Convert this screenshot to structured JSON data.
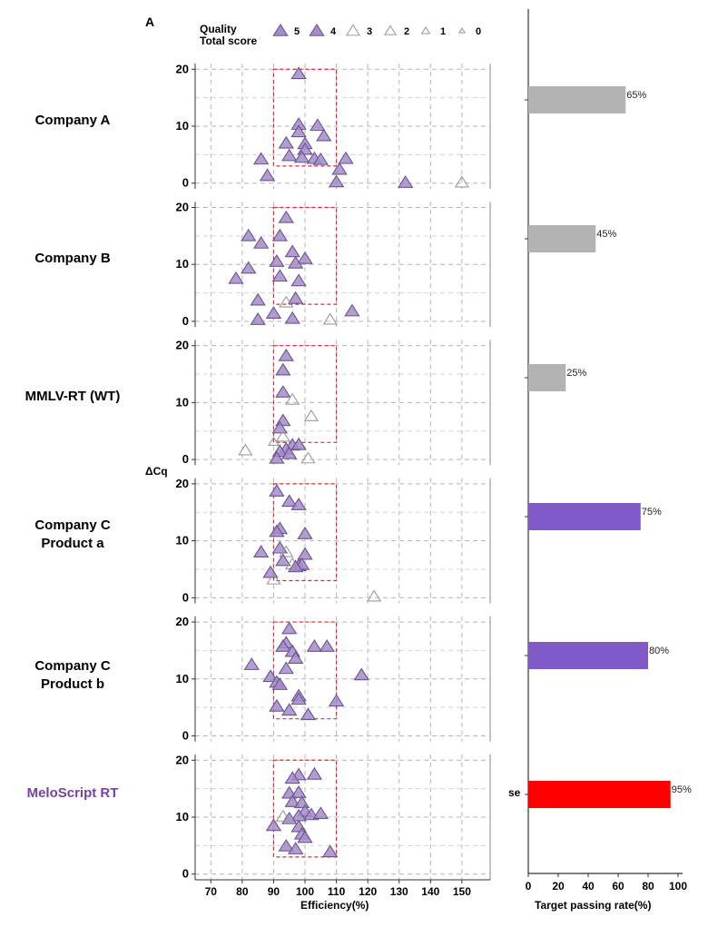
{
  "figure": {
    "panel_letter": "A",
    "y_axis_label": "ΔCq",
    "x_axis_label": "Efficiency(%)",
    "bar_axis_label": "Target passing rate(%)",
    "legend": {
      "title_line1": "Quality",
      "title_line2": "Total score",
      "levels": [
        "5",
        "4",
        "3",
        "2",
        "1",
        "0"
      ]
    },
    "cut_label_fragment": "se",
    "box_window": {
      "efficiency": [
        90,
        110
      ],
      "delta_cq": [
        3,
        20
      ]
    },
    "colors": {
      "scored_fill": "#a48cc9",
      "scored_stroke": "#6a548f",
      "low_stroke": "#9a9a9a",
      "box": "#e0282e",
      "bar_gray": "#b3b3b3",
      "bar_purple": "#7f5ac8",
      "bar_red": "#ff0000",
      "highlight_label": "#7a3fa3"
    }
  },
  "rows": [
    {
      "label_line1": "Company A",
      "label_line2": "",
      "highlight": false
    },
    {
      "label_line1": "Company B",
      "label_line2": "",
      "highlight": false
    },
    {
      "label_line1": "MMLV-RT (WT)",
      "label_line2": "",
      "highlight": false
    },
    {
      "label_line1": "Company C",
      "label_line2": "Product a",
      "highlight": false
    },
    {
      "label_line1": "Company C",
      "label_line2": "Product b",
      "highlight": false
    },
    {
      "label_line1": "MeloScript RT",
      "label_line2": "",
      "highlight": true
    }
  ],
  "chart_data": [
    {
      "type": "scatter",
      "title": "",
      "xlabel": "Efficiency(%)",
      "ylabel": "ΔCq",
      "xlim": [
        65,
        159
      ],
      "ylim": [
        -1,
        21
      ],
      "x_ticks": [
        70,
        80,
        90,
        100,
        110,
        120,
        130,
        140,
        150
      ],
      "y_ticks": [
        0,
        10,
        20
      ],
      "grid": true,
      "legend_position": "top",
      "legend_title": "Quality Total score",
      "series": [
        {
          "name": "Company A",
          "points": [
            {
              "x": 98,
              "y": 19.2,
              "s": 5
            },
            {
              "x": 98,
              "y": 10.3,
              "s": 5
            },
            {
              "x": 104,
              "y": 10.1,
              "s": 5
            },
            {
              "x": 98,
              "y": 9.0,
              "s": 5
            },
            {
              "x": 106,
              "y": 8.3,
              "s": 5
            },
            {
              "x": 94,
              "y": 7.0,
              "s": 5
            },
            {
              "x": 100,
              "y": 6.9,
              "s": 5
            },
            {
              "x": 100,
              "y": 5.9,
              "s": 5
            },
            {
              "x": 95,
              "y": 4.8,
              "s": 5
            },
            {
              "x": 99,
              "y": 4.5,
              "s": 5
            },
            {
              "x": 103,
              "y": 4.3,
              "s": 5
            },
            {
              "x": 105,
              "y": 4.1,
              "s": 5
            },
            {
              "x": 113,
              "y": 4.3,
              "s": 5
            },
            {
              "x": 86,
              "y": 4.2,
              "s": 5
            },
            {
              "x": 111,
              "y": 2.4,
              "s": 5
            },
            {
              "x": 88,
              "y": 1.3,
              "s": 5
            },
            {
              "x": 110,
              "y": 0.2,
              "s": 5
            },
            {
              "x": 132,
              "y": 0.1,
              "s": 5
            },
            {
              "x": 150,
              "y": 0.1,
              "s": 3
            }
          ]
        },
        {
          "name": "Company B",
          "points": [
            {
              "x": 94,
              "y": 18.2,
              "s": 5
            },
            {
              "x": 82,
              "y": 15.0,
              "s": 5
            },
            {
              "x": 92,
              "y": 15.0,
              "s": 5
            },
            {
              "x": 86,
              "y": 13.7,
              "s": 5
            },
            {
              "x": 96,
              "y": 12.2,
              "s": 5
            },
            {
              "x": 100,
              "y": 11.0,
              "s": 5
            },
            {
              "x": 91,
              "y": 10.5,
              "s": 5
            },
            {
              "x": 97,
              "y": 10.2,
              "s": 5
            },
            {
              "x": 82,
              "y": 9.3,
              "s": 5
            },
            {
              "x": 92,
              "y": 7.9,
              "s": 5
            },
            {
              "x": 78,
              "y": 7.5,
              "s": 5
            },
            {
              "x": 98,
              "y": 7.1,
              "s": 5
            },
            {
              "x": 85,
              "y": 3.7,
              "s": 5
            },
            {
              "x": 97,
              "y": 4.0,
              "s": 5
            },
            {
              "x": 94,
              "y": 3.3,
              "s": 3
            },
            {
              "x": 115,
              "y": 1.8,
              "s": 5
            },
            {
              "x": 90,
              "y": 1.4,
              "s": 5
            },
            {
              "x": 85,
              "y": 0.3,
              "s": 5
            },
            {
              "x": 96,
              "y": 0.5,
              "s": 5
            },
            {
              "x": 108,
              "y": 0.3,
              "s": 3
            }
          ]
        },
        {
          "name": "MMLV-RT (WT)",
          "points": [
            {
              "x": 94,
              "y": 18.2,
              "s": 5
            },
            {
              "x": 93,
              "y": 15.7,
              "s": 5
            },
            {
              "x": 93,
              "y": 11.8,
              "s": 5
            },
            {
              "x": 96,
              "y": 10.5,
              "s": 3
            },
            {
              "x": 102,
              "y": 7.6,
              "s": 3
            },
            {
              "x": 93,
              "y": 6.8,
              "s": 5
            },
            {
              "x": 92,
              "y": 5.5,
              "s": 5
            },
            {
              "x": 93,
              "y": 4.0,
              "s": 3
            },
            {
              "x": 90,
              "y": 3.1,
              "s": 2
            },
            {
              "x": 96,
              "y": 2.5,
              "s": 5
            },
            {
              "x": 98,
              "y": 2.6,
              "s": 5
            },
            {
              "x": 94,
              "y": 1.8,
              "s": 5
            },
            {
              "x": 92,
              "y": 1.4,
              "s": 5
            },
            {
              "x": 95,
              "y": 1.0,
              "s": 5
            },
            {
              "x": 91,
              "y": 0.2,
              "s": 5
            },
            {
              "x": 81,
              "y": 1.6,
              "s": 3
            },
            {
              "x": 101,
              "y": 0.2,
              "s": 3
            }
          ]
        },
        {
          "name": "Company C Product a",
          "points": [
            {
              "x": 91,
              "y": 18.7,
              "s": 5
            },
            {
              "x": 95,
              "y": 16.9,
              "s": 5
            },
            {
              "x": 98,
              "y": 16.3,
              "s": 5
            },
            {
              "x": 92,
              "y": 12.1,
              "s": 5
            },
            {
              "x": 91,
              "y": 11.6,
              "s": 5
            },
            {
              "x": 100,
              "y": 11.2,
              "s": 5
            },
            {
              "x": 92,
              "y": 8.7,
              "s": 5
            },
            {
              "x": 94,
              "y": 8.0,
              "s": 3
            },
            {
              "x": 86,
              "y": 8.0,
              "s": 5
            },
            {
              "x": 100,
              "y": 7.6,
              "s": 5
            },
            {
              "x": 93,
              "y": 6.5,
              "s": 5
            },
            {
              "x": 96,
              "y": 5.9,
              "s": 3
            },
            {
              "x": 98,
              "y": 5.6,
              "s": 5
            },
            {
              "x": 99,
              "y": 5.8,
              "s": 5
            },
            {
              "x": 97,
              "y": 5.4,
              "s": 5
            },
            {
              "x": 89,
              "y": 4.4,
              "s": 5
            },
            {
              "x": 90,
              "y": 3.2,
              "s": 3
            },
            {
              "x": 122,
              "y": 0.2,
              "s": 3
            }
          ]
        },
        {
          "name": "Company C Product b",
          "points": [
            {
              "x": 95,
              "y": 18.8,
              "s": 5
            },
            {
              "x": 94,
              "y": 16.3,
              "s": 5
            },
            {
              "x": 93,
              "y": 15.7,
              "s": 5
            },
            {
              "x": 103,
              "y": 15.7,
              "s": 5
            },
            {
              "x": 107,
              "y": 15.7,
              "s": 5
            },
            {
              "x": 96,
              "y": 14.8,
              "s": 5
            },
            {
              "x": 97,
              "y": 13.6,
              "s": 5
            },
            {
              "x": 94,
              "y": 11.8,
              "s": 5
            },
            {
              "x": 83,
              "y": 12.5,
              "s": 5
            },
            {
              "x": 89,
              "y": 10.4,
              "s": 5
            },
            {
              "x": 118,
              "y": 10.7,
              "s": 5
            },
            {
              "x": 91,
              "y": 9.4,
              "s": 5
            },
            {
              "x": 92,
              "y": 9.0,
              "s": 5
            },
            {
              "x": 98,
              "y": 7.0,
              "s": 5
            },
            {
              "x": 98,
              "y": 6.4,
              "s": 5
            },
            {
              "x": 110,
              "y": 6.1,
              "s": 5
            },
            {
              "x": 91,
              "y": 5.2,
              "s": 5
            },
            {
              "x": 95,
              "y": 4.5,
              "s": 5
            },
            {
              "x": 101,
              "y": 3.7,
              "s": 5
            }
          ]
        },
        {
          "name": "MeloScript RT",
          "points": [
            {
              "x": 103,
              "y": 17.5,
              "s": 5
            },
            {
              "x": 98,
              "y": 17.4,
              "s": 5
            },
            {
              "x": 96,
              "y": 16.8,
              "s": 5
            },
            {
              "x": 95,
              "y": 14.2,
              "s": 5
            },
            {
              "x": 98,
              "y": 14.3,
              "s": 5
            },
            {
              "x": 96,
              "y": 12.7,
              "s": 5
            },
            {
              "x": 99,
              "y": 12.5,
              "s": 5
            },
            {
              "x": 100,
              "y": 11.0,
              "s": 5
            },
            {
              "x": 102,
              "y": 10.4,
              "s": 5
            },
            {
              "x": 105,
              "y": 10.6,
              "s": 5
            },
            {
              "x": 98,
              "y": 10.2,
              "s": 5
            },
            {
              "x": 95,
              "y": 9.7,
              "s": 5
            },
            {
              "x": 93,
              "y": 10.1,
              "s": 3
            },
            {
              "x": 90,
              "y": 8.5,
              "s": 5
            },
            {
              "x": 98,
              "y": 8.3,
              "s": 5
            },
            {
              "x": 99,
              "y": 7.0,
              "s": 5
            },
            {
              "x": 100,
              "y": 6.4,
              "s": 5
            },
            {
              "x": 94,
              "y": 4.9,
              "s": 5
            },
            {
              "x": 97,
              "y": 4.4,
              "s": 5
            },
            {
              "x": 108,
              "y": 3.9,
              "s": 5
            }
          ]
        }
      ]
    },
    {
      "type": "bar",
      "orientation": "horizontal",
      "title": "",
      "xlabel": "Target passing rate(%)",
      "ylabel": "",
      "xlim": [
        0,
        100
      ],
      "x_ticks": [
        0,
        20,
        40,
        60,
        80,
        100
      ],
      "categories": [
        "Company A",
        "Company B",
        "MMLV-RT (WT)",
        "Company C Product a",
        "Company C Product b",
        "MeloScript RT"
      ],
      "values": [
        65,
        45,
        25,
        75,
        80,
        95
      ],
      "value_labels": [
        "65%",
        "45%",
        "25%",
        "75%",
        "80%",
        "95%"
      ],
      "bar_colors": [
        "#b3b3b3",
        "#b3b3b3",
        "#b3b3b3",
        "#7f5ac8",
        "#7f5ac8",
        "#ff0000"
      ]
    }
  ]
}
